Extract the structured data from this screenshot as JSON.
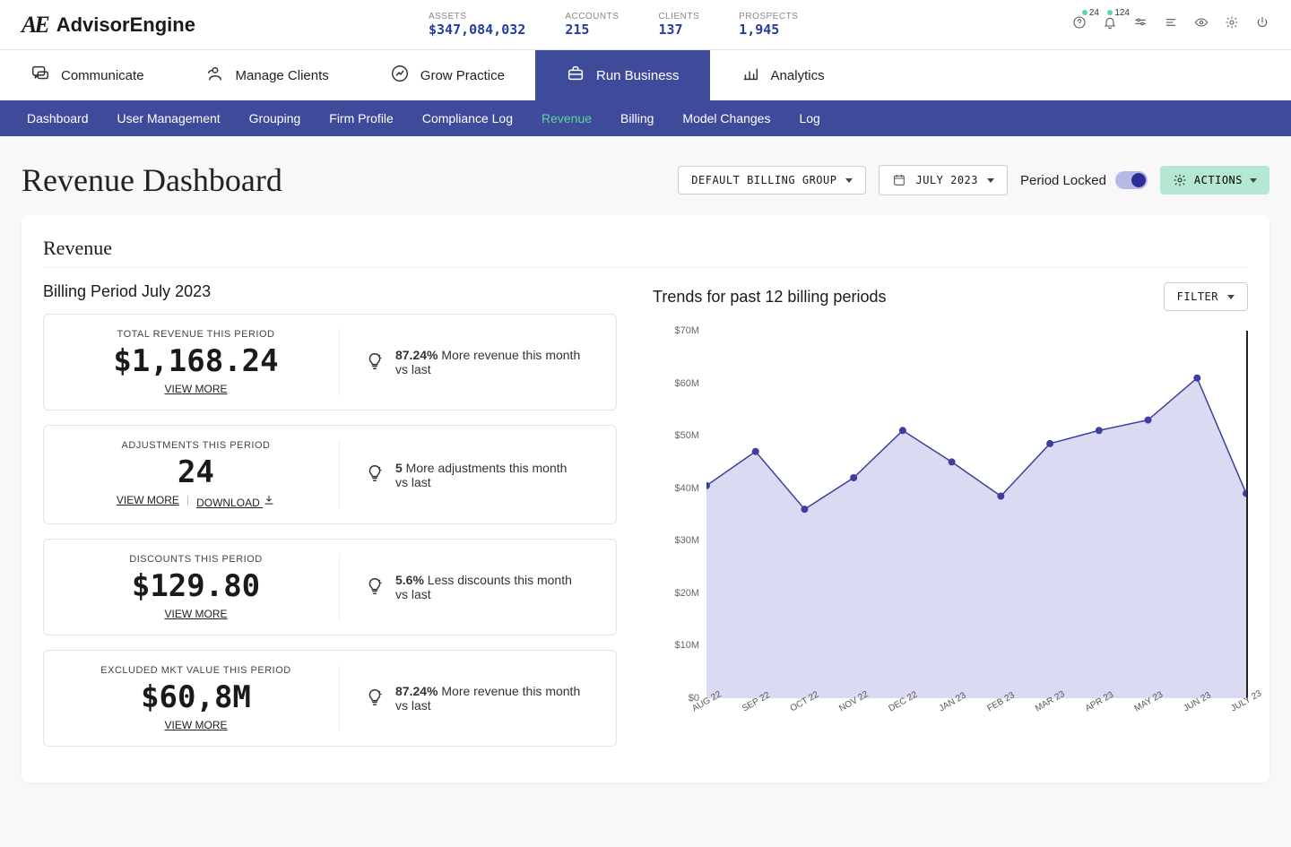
{
  "brand": {
    "name": "AdvisorEngine",
    "mark": "AE"
  },
  "header_stats": [
    {
      "label": "ASSETS",
      "value": "$347,084,032"
    },
    {
      "label": "ACCOUNTS",
      "value": "215"
    },
    {
      "label": "CLIENTS",
      "value": "137"
    },
    {
      "label": "PROSPECTS",
      "value": "1,945"
    }
  ],
  "header_badges": {
    "help": "24",
    "bell": "124"
  },
  "nav1": [
    {
      "label": "Communicate",
      "icon": "chat"
    },
    {
      "label": "Manage Clients",
      "icon": "users"
    },
    {
      "label": "Grow Practice",
      "icon": "growth"
    },
    {
      "label": "Run Business",
      "icon": "briefcase",
      "active": true
    },
    {
      "label": "Analytics",
      "icon": "chart"
    }
  ],
  "nav2": [
    {
      "label": "Dashboard"
    },
    {
      "label": "User Management"
    },
    {
      "label": "Grouping"
    },
    {
      "label": "Firm Profile"
    },
    {
      "label": "Compliance Log"
    },
    {
      "label": "Revenue",
      "active": true
    },
    {
      "label": "Billing"
    },
    {
      "label": "Model Changes"
    },
    {
      "label": "Log"
    }
  ],
  "page": {
    "title": "Revenue Dashboard",
    "billing_group": "DEFAULT BILLING GROUP",
    "period": "JULY 2023",
    "period_locked_label": "Period Locked",
    "actions_label": "ACTIONS"
  },
  "revenue_card": {
    "title": "Revenue",
    "billing_period_label": "Billing Period July 2023",
    "metrics": [
      {
        "label": "TOTAL REVENUE THIS PERIOD",
        "value": "$1,168.24",
        "links": [
          "VIEW MORE"
        ],
        "insight_bold": "87.24%",
        "insight_text": "More revenue this month vs last"
      },
      {
        "label": "ADJUSTMENTS THIS PERIOD",
        "value": "24",
        "links": [
          "VIEW MORE",
          "DOWNLOAD"
        ],
        "download_icon": true,
        "insight_bold": "5",
        "insight_text": "More adjustments this month vs last"
      },
      {
        "label": "DISCOUNTS THIS PERIOD",
        "value": "$129.80",
        "links": [
          "VIEW MORE"
        ],
        "insight_bold": "5.6%",
        "insight_text": "Less discounts this month vs last"
      },
      {
        "label": "EXCLUDED MKT VALUE THIS PERIOD",
        "value": "$60,8M",
        "links": [
          "VIEW MORE"
        ],
        "insight_bold": "87.24%",
        "insight_text": "More revenue this month vs last"
      }
    ],
    "trends": {
      "title": "Trends for past 12 billing periods",
      "filter_label": "FILTER",
      "chart": {
        "type": "area-line",
        "x_labels": [
          "AUG 22",
          "SEP 22",
          "OCT 22",
          "NOV 22",
          "DEC 22",
          "JAN 23",
          "FEB 23",
          "MAR 23",
          "APR 23",
          "MAY 23",
          "JUN 23",
          "JULY 23"
        ],
        "y_values": [
          40.5,
          47,
          36,
          42,
          51,
          45,
          38.5,
          48.5,
          51,
          53,
          61,
          39
        ],
        "y_ticks": [
          0,
          10,
          20,
          30,
          40,
          50,
          60,
          70
        ],
        "y_tick_labels": [
          "$0",
          "$10M",
          "$20M",
          "$30M",
          "$40M",
          "$50M",
          "$60M",
          "$70M"
        ],
        "ylim": [
          0,
          70
        ],
        "line_color": "#3b3f9e",
        "marker_color": "#3b3f9e",
        "area_fill": "#d3d5f0",
        "area_opacity": 0.85,
        "marker_radius": 4,
        "line_width": 1.5,
        "axis_label_fontsize": 11,
        "x_label_rotation": -30
      }
    }
  }
}
